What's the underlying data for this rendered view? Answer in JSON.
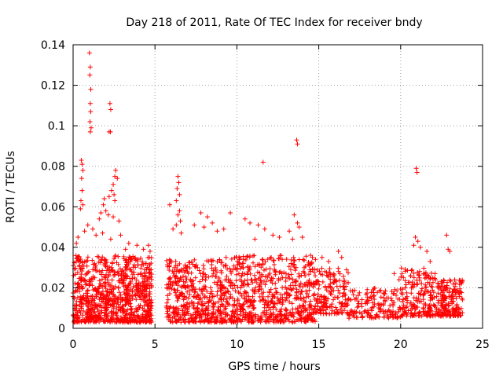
{
  "chart_data": {
    "type": "scatter",
    "title": "Day 218 of 2011, Rate Of TEC Index for receiver bndy",
    "xlabel": "GPS time / hours",
    "ylabel": "ROTI / TECUs",
    "xlim": [
      0,
      25
    ],
    "ylim": [
      0,
      0.14
    ],
    "xticks": [
      0,
      5,
      10,
      15,
      20,
      25
    ],
    "yticks": [
      0,
      0.02,
      0.04,
      0.06,
      0.08,
      0.1,
      0.12,
      0.14
    ],
    "xtick_labels": [
      "0",
      "5",
      "10",
      "15",
      "20",
      "25"
    ],
    "ytick_labels": [
      "0",
      "0.02",
      "0.04",
      "0.06",
      "0.08",
      "0.1",
      "0.12",
      "0.14"
    ],
    "grid": true,
    "marker": "+",
    "color": "#ff0000",
    "series": [
      {
        "points": [
          [
            1.0,
            0.136
          ],
          [
            1.05,
            0.129
          ],
          [
            1.02,
            0.125
          ],
          [
            1.08,
            0.118
          ],
          [
            1.05,
            0.111
          ],
          [
            1.07,
            0.107
          ],
          [
            1.03,
            0.102
          ],
          [
            1.1,
            0.099
          ],
          [
            1.05,
            0.097
          ],
          [
            2.25,
            0.111
          ],
          [
            2.3,
            0.108
          ],
          [
            2.2,
            0.097
          ],
          [
            2.28,
            0.097
          ],
          [
            13.65,
            0.093
          ],
          [
            13.7,
            0.091
          ],
          [
            11.6,
            0.082
          ],
          [
            20.95,
            0.079
          ],
          [
            21.0,
            0.077
          ],
          [
            0.5,
            0.083
          ],
          [
            0.55,
            0.081
          ],
          [
            0.6,
            0.078
          ],
          [
            0.52,
            0.074
          ],
          [
            0.55,
            0.068
          ],
          [
            0.48,
            0.063
          ],
          [
            0.6,
            0.061
          ],
          [
            0.45,
            0.059
          ],
          [
            2.6,
            0.078
          ],
          [
            2.55,
            0.075
          ],
          [
            2.7,
            0.074
          ],
          [
            2.45,
            0.071
          ],
          [
            2.35,
            0.068
          ],
          [
            2.5,
            0.066
          ],
          [
            2.2,
            0.065
          ],
          [
            2.55,
            0.063
          ],
          [
            1.9,
            0.064
          ],
          [
            1.85,
            0.061
          ],
          [
            2.0,
            0.058
          ],
          [
            1.7,
            0.057
          ],
          [
            2.15,
            0.056
          ],
          [
            2.45,
            0.055
          ],
          [
            2.8,
            0.053
          ],
          [
            1.6,
            0.054
          ],
          [
            6.4,
            0.075
          ],
          [
            6.45,
            0.072
          ],
          [
            6.35,
            0.069
          ],
          [
            6.5,
            0.066
          ],
          [
            6.3,
            0.063
          ],
          [
            5.9,
            0.061
          ],
          [
            6.5,
            0.058
          ],
          [
            6.4,
            0.056
          ],
          [
            6.55,
            0.053
          ],
          [
            6.3,
            0.051
          ],
          [
            6.1,
            0.049
          ],
          [
            6.6,
            0.047
          ],
          [
            7.8,
            0.057
          ],
          [
            8.2,
            0.055
          ],
          [
            9.6,
            0.057
          ],
          [
            8.5,
            0.052
          ],
          [
            7.4,
            0.051
          ],
          [
            8.0,
            0.05
          ],
          [
            9.2,
            0.049
          ],
          [
            8.8,
            0.048
          ],
          [
            10.5,
            0.054
          ],
          [
            10.8,
            0.052
          ],
          [
            11.3,
            0.051
          ],
          [
            11.7,
            0.049
          ],
          [
            12.2,
            0.046
          ],
          [
            12.6,
            0.045
          ],
          [
            11.1,
            0.044
          ],
          [
            13.5,
            0.056
          ],
          [
            13.7,
            0.052
          ],
          [
            13.8,
            0.05
          ],
          [
            13.2,
            0.048
          ],
          [
            14.0,
            0.045
          ],
          [
            13.4,
            0.044
          ],
          [
            20.9,
            0.045
          ],
          [
            21.05,
            0.043
          ],
          [
            20.8,
            0.041
          ],
          [
            21.2,
            0.04
          ],
          [
            22.8,
            0.046
          ],
          [
            22.9,
            0.039
          ],
          [
            23.0,
            0.038
          ],
          [
            21.6,
            0.038
          ],
          [
            0.3,
            0.045
          ],
          [
            0.2,
            0.042
          ],
          [
            0.7,
            0.048
          ],
          [
            0.9,
            0.051
          ],
          [
            1.2,
            0.049
          ],
          [
            1.4,
            0.046
          ],
          [
            1.8,
            0.047
          ],
          [
            2.9,
            0.046
          ],
          [
            3.4,
            0.042
          ],
          [
            3.9,
            0.041
          ],
          [
            4.3,
            0.039
          ],
          [
            4.6,
            0.041
          ],
          [
            4.7,
            0.038
          ],
          [
            3.2,
            0.039
          ],
          [
            2.3,
            0.044
          ],
          [
            15.2,
            0.035
          ],
          [
            15.6,
            0.033
          ],
          [
            16.2,
            0.038
          ],
          [
            16.4,
            0.035
          ],
          [
            14.5,
            0.036
          ],
          [
            14.8,
            0.034
          ],
          [
            19.6,
            0.027
          ],
          [
            19.9,
            0.024
          ],
          [
            21.8,
            0.033
          ],
          [
            22.1,
            0.027
          ],
          [
            23.3,
            0.024
          ],
          [
            23.7,
            0.022
          ]
        ]
      }
    ],
    "dense_regions": [
      {
        "x": [
          0.0,
          4.8
        ],
        "y": [
          0.003,
          0.036
        ],
        "count": 900
      },
      {
        "x": [
          5.7,
          9.0
        ],
        "y": [
          0.003,
          0.034
        ],
        "count": 420
      },
      {
        "x": [
          9.0,
          14.8
        ],
        "y": [
          0.003,
          0.036
        ],
        "count": 700
      },
      {
        "x": [
          14.8,
          16.8
        ],
        "y": [
          0.007,
          0.03
        ],
        "count": 160
      },
      {
        "x": [
          16.8,
          20.0
        ],
        "y": [
          0.005,
          0.02
        ],
        "count": 160
      },
      {
        "x": [
          20.0,
          22.2
        ],
        "y": [
          0.006,
          0.03
        ],
        "count": 200
      },
      {
        "x": [
          22.2,
          23.8
        ],
        "y": [
          0.006,
          0.024
        ],
        "count": 180
      }
    ]
  }
}
